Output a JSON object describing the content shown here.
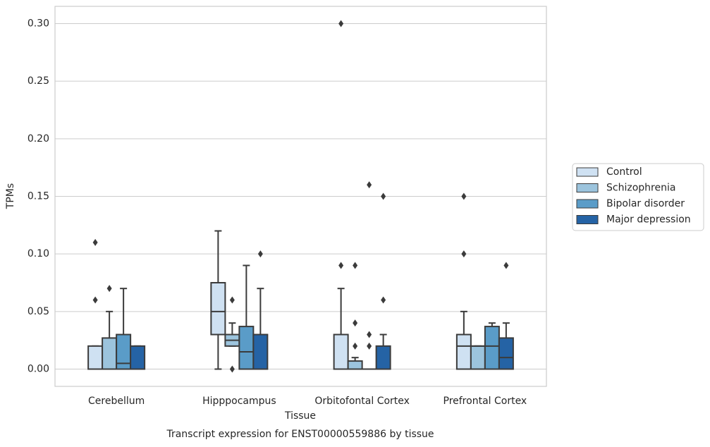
{
  "chart_data": {
    "type": "box",
    "title": "Transcript expression for ENST00000559886 by tissue",
    "x_label": "Tissue",
    "y_label": "TPMs",
    "categories": [
      "Cerebellum",
      "Hipppocampus",
      "Orbitofontal Cortex",
      "Prefrontal Cortex"
    ],
    "ylim": [
      -0.015,
      0.315
    ],
    "yticks": [
      {
        "value": 0,
        "label": "0.00"
      },
      0.05,
      {
        "value": 0.1,
        "label": "0.10"
      },
      0.15,
      {
        "value": 0.2,
        "label": "0.20"
      },
      0.25,
      {
        "value": 0.3,
        "label": "0.30"
      }
    ],
    "grid": true,
    "legend": "right",
    "edge_color": "#3b3b3b",
    "series": [
      {
        "name": "Control",
        "color": "#cfe1f2",
        "boxes": [
          {
            "whislo": 0,
            "q1": 0,
            "med": 0,
            "q3": 0.02,
            "whishi": 0.02,
            "fliers": [
              0.06,
              0.11
            ]
          },
          {
            "whislo": 0,
            "q1": 0.03,
            "med": 0.05,
            "q3": 0.075,
            "whishi": 0.12,
            "fliers": []
          },
          {
            "whislo": 0,
            "q1": 0,
            "med": 0,
            "q3": 0.03,
            "whishi": 0.07,
            "fliers": [
              0.09,
              0.3
            ]
          },
          {
            "whislo": 0,
            "q1": 0,
            "med": 0.02,
            "q3": 0.03,
            "whishi": 0.05,
            "fliers": [
              0.1,
              0.15
            ]
          }
        ]
      },
      {
        "name": "Schizophrenia",
        "color": "#9cc4dd",
        "boxes": [
          {
            "whislo": 0,
            "q1": 0,
            "med": 0,
            "q3": 0.027,
            "whishi": 0.05,
            "fliers": [
              0.07
            ]
          },
          {
            "whislo": 0.02,
            "q1": 0.02,
            "med": 0.025,
            "q3": 0.03,
            "whishi": 0.04,
            "fliers": [
              0.06,
              0
            ]
          },
          {
            "whislo": 0,
            "q1": 0,
            "med": 0,
            "q3": 0.007,
            "whishi": 0.01,
            "fliers": [
              0.02,
              0.04,
              0.09
            ]
          },
          {
            "whislo": 0,
            "q1": 0,
            "med": 0.02,
            "q3": 0.02,
            "whishi": 0.02,
            "fliers": []
          }
        ]
      },
      {
        "name": "Bipolar disorder",
        "color": "#5a9cc8",
        "boxes": [
          {
            "whislo": 0,
            "q1": 0,
            "med": 0.005,
            "q3": 0.03,
            "whishi": 0.07,
            "fliers": []
          },
          {
            "whislo": 0,
            "q1": 0,
            "med": 0.015,
            "q3": 0.037,
            "whishi": 0.09,
            "fliers": []
          },
          {
            "whislo": 0,
            "q1": 0,
            "med": 0,
            "q3": 0,
            "whishi": 0,
            "fliers": [
              0.02,
              0.03,
              0.16
            ]
          },
          {
            "whislo": 0,
            "q1": 0,
            "med": 0.02,
            "q3": 0.037,
            "whishi": 0.04,
            "fliers": []
          }
        ]
      },
      {
        "name": "Major depression",
        "color": "#2563a5",
        "boxes": [
          {
            "whislo": 0,
            "q1": 0,
            "med": 0,
            "q3": 0.02,
            "whishi": 0.02,
            "fliers": []
          },
          {
            "whislo": 0,
            "q1": 0,
            "med": 0,
            "q3": 0.03,
            "whishi": 0.07,
            "fliers": [
              0.1
            ]
          },
          {
            "whislo": 0,
            "q1": 0,
            "med": 0,
            "q3": 0.02,
            "whishi": 0.03,
            "fliers": [
              0.06,
              0.15
            ]
          },
          {
            "whislo": 0,
            "q1": 0,
            "med": 0.01,
            "q3": 0.027,
            "whishi": 0.04,
            "fliers": [
              0.09
            ]
          }
        ]
      }
    ]
  }
}
